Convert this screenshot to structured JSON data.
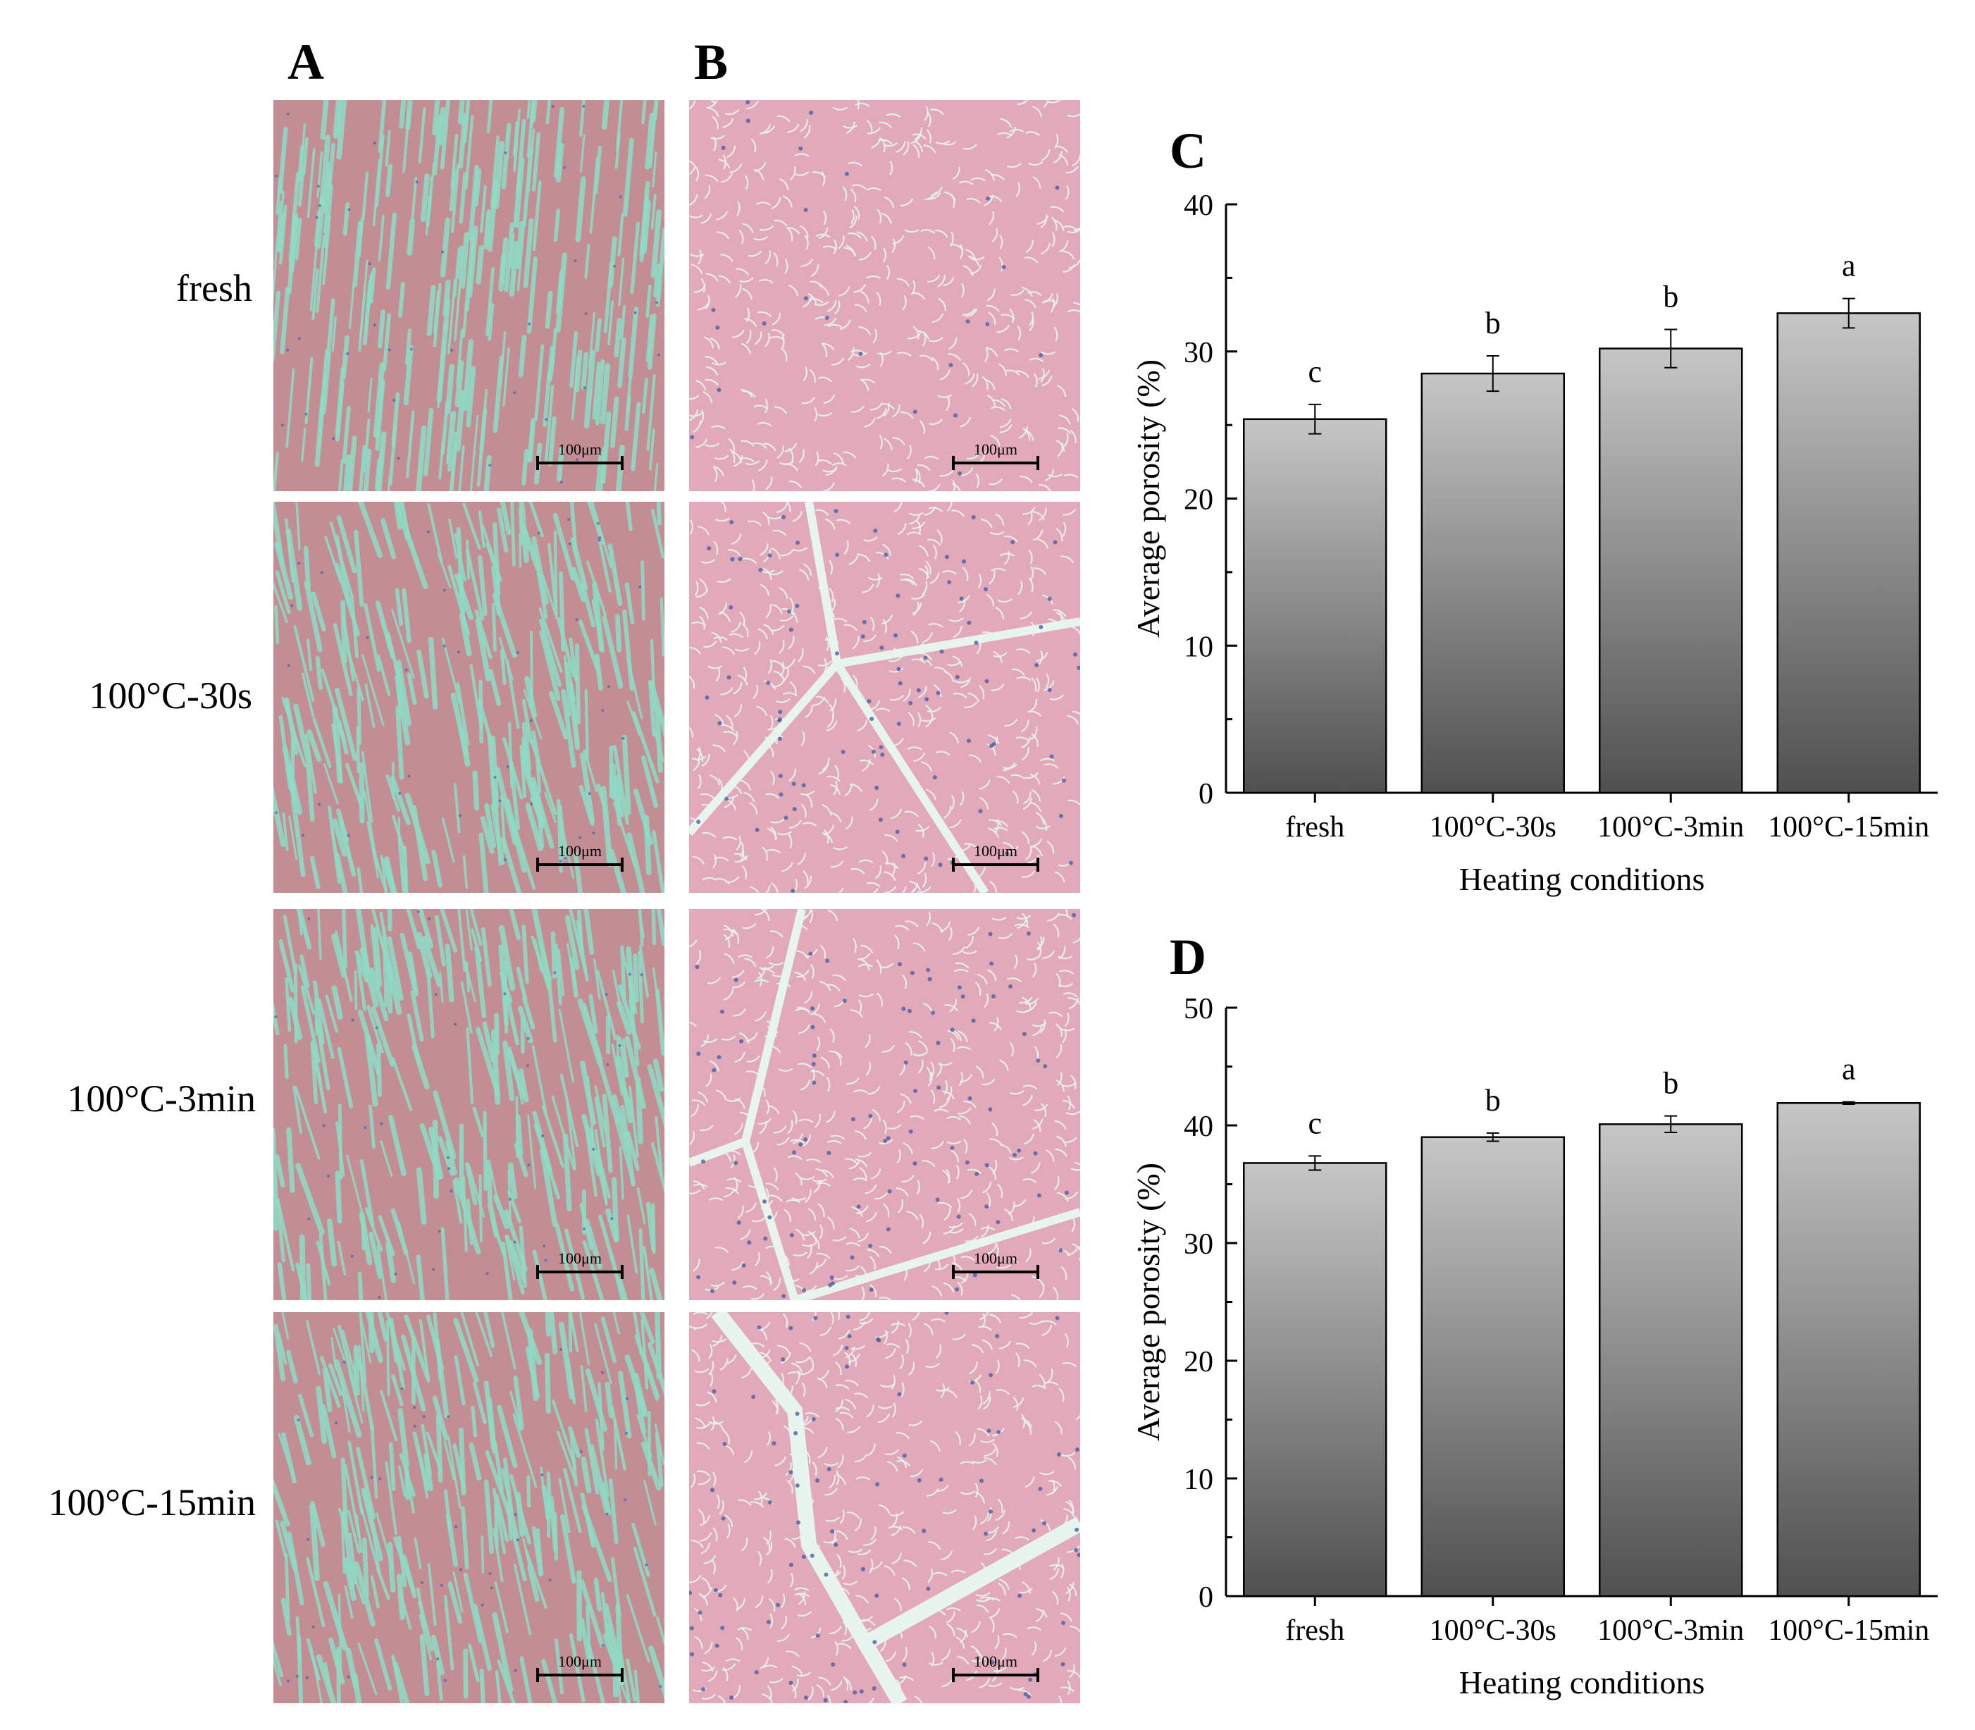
{
  "figure": {
    "panels": {
      "A": "A",
      "B": "B",
      "C": "C",
      "D": "D"
    },
    "rows": [
      {
        "label": "fresh"
      },
      {
        "label": "100°C-30s"
      },
      {
        "label": "100°C-3min"
      },
      {
        "label": "100°C-15min"
      }
    ],
    "scale_bar": "100μm",
    "colors": {
      "stain_A_bg": "#c38d94",
      "stain_A_gap": "#8fdcc6",
      "stain_B_bg": "#e2a9b8",
      "stain_B_gap": "#e8f4ee",
      "nuclei": "#4a5fa8"
    }
  },
  "chart_data": [
    {
      "panel": "C",
      "type": "bar",
      "categories": [
        "fresh",
        "100°C-30s",
        "100°C-3min",
        "100°C-15min"
      ],
      "values": [
        25.4,
        28.5,
        30.2,
        32.6
      ],
      "errors": [
        1.0,
        1.2,
        1.3,
        1.0
      ],
      "significance": [
        "c",
        "b",
        "b",
        "a"
      ],
      "xlabel": "Heating conditions",
      "ylabel": "Average porosity (%)",
      "ylim": [
        0,
        40
      ],
      "yticks": [
        0,
        10,
        20,
        30,
        40
      ],
      "grid": false,
      "bar_gradient": [
        "#c6c6c6",
        "#505050"
      ]
    },
    {
      "panel": "D",
      "type": "bar",
      "categories": [
        "fresh",
        "100°C-30s",
        "100°C-3min",
        "100°C-15min"
      ],
      "values": [
        36.8,
        39.0,
        40.1,
        41.9
      ],
      "errors": [
        0.6,
        0.35,
        0.7,
        0.1
      ],
      "significance": [
        "c",
        "b",
        "b",
        "a"
      ],
      "xlabel": "Heating conditions",
      "ylabel": "Average porosity (%)",
      "ylim": [
        0,
        50
      ],
      "yticks": [
        0,
        10,
        20,
        30,
        40,
        50
      ],
      "grid": false,
      "bar_gradient": [
        "#c6c6c6",
        "#505050"
      ]
    }
  ]
}
